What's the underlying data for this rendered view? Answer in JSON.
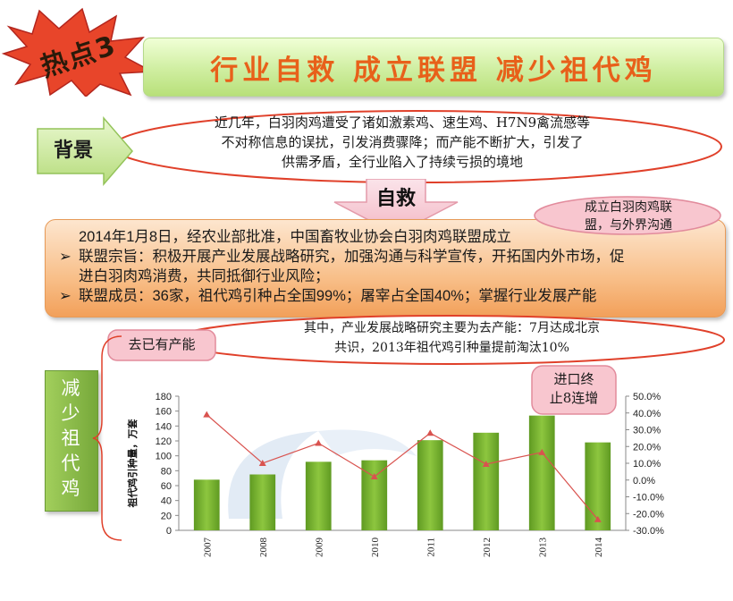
{
  "badge": {
    "text": "热点3"
  },
  "title": "行业自救  成立联盟  减少祖代鸡",
  "background": {
    "label": "背景",
    "lines": [
      "近几年，白羽肉鸡遭受了诸如激素鸡、速生鸡、H7N9禽流感等",
      "不对称信息的误扰，引发消费骤降；而产能不断扩大，引发了",
      "供需矛盾，全行业陷入了持续亏损的境地"
    ]
  },
  "rescue_label": "自救",
  "alliance": {
    "lines": [
      {
        "bullet": "",
        "text": "2014年1月8日，经农业部批准，中国畜牧业协会白羽肉鸡联盟成立"
      },
      {
        "bullet": "➢",
        "text": "联盟宗旨：积极开展产业发展战略研究，加强沟通与科学宣传，开拓国内外市场，促"
      },
      {
        "bullet": "",
        "text": "进白羽肉鸡消费，共同抵御行业风险；"
      },
      {
        "bullet": "➢",
        "text": "联盟成员：36家，祖代鸡引种占全国99%；屠宰占全国40%；掌握行业发展产能"
      }
    ]
  },
  "callouts": {
    "alliance": [
      "成立白羽肉鸡联",
      "盟，与外界沟通"
    ],
    "removed": "去已有产能",
    "import": [
      "进口终",
      "止8连增"
    ]
  },
  "mid_note": [
    "其中，产业发展战略研究主要为去产能：7月达成北京",
    "共识，2013年祖代鸡引种量提前淘汰10%"
  ],
  "side_label": [
    "减",
    "少",
    "祖",
    "代",
    "鸡"
  ],
  "colors": {
    "bar": "#8dc63f",
    "bar_dark": "#5f9a22",
    "line": "#d9534f",
    "title": "#e8601a"
  },
  "chart_data": {
    "type": "bar+line",
    "title": "",
    "categories": [
      "2007",
      "2008",
      "2009",
      "2010",
      "2011",
      "2012",
      "2013",
      "2014"
    ],
    "ylabel": "祖代鸡引种量，万套",
    "ylim": [
      0,
      180
    ],
    "yticks": [
      "0",
      "20",
      "40",
      "60",
      "80",
      "100",
      "120",
      "140",
      "160",
      "180"
    ],
    "y2lim": [
      -30,
      50
    ],
    "y2ticks": [
      "-30.0%",
      "-20.0%",
      "-10.0%",
      "0.0%",
      "10.0%",
      "20.0%",
      "30.0%",
      "40.0%",
      "50.0%"
    ],
    "series": [
      {
        "kind": "bar",
        "axis": "left",
        "values": [
          68,
          75,
          92,
          94,
          121,
          131,
          154,
          118
        ]
      },
      {
        "kind": "line",
        "axis": "right",
        "values": [
          39.0,
          10.0,
          22.0,
          2.0,
          28.0,
          9.5,
          16.5,
          -23.5
        ]
      }
    ],
    "grid": false
  }
}
